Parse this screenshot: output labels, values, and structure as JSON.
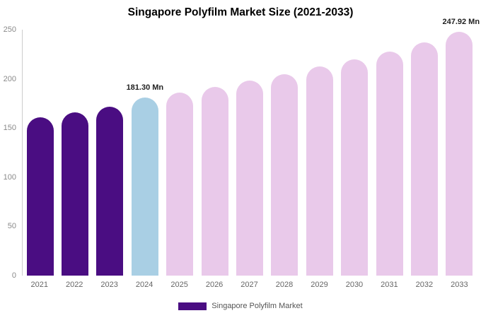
{
  "legend": {
    "label": "Singapore Polyfilm Market",
    "color": "#4a0d82"
  },
  "chart_data": {
    "type": "bar",
    "title": "Singapore Polyfilm Market Size (2021-2033)",
    "categories": [
      "2021",
      "2022",
      "2023",
      "2024",
      "2025",
      "2026",
      "2027",
      "2028",
      "2029",
      "2030",
      "2031",
      "2032",
      "2033"
    ],
    "values": [
      161,
      166,
      172,
      181.3,
      186,
      192,
      198,
      205,
      213,
      220,
      228,
      237,
      247.92
    ],
    "unit": "Mn",
    "xlabel": "",
    "ylabel": "",
    "ylim": [
      0,
      250
    ],
    "yticks": [
      0,
      50,
      100,
      150,
      200,
      250
    ],
    "grid": false,
    "legend_position": "bottom",
    "annotations": [
      "",
      "",
      "",
      "181.30 Mn",
      "",
      "",
      "",
      "",
      "",
      "",
      "",
      "",
      "247.92 Mn"
    ],
    "bar_colors": [
      "#4a0d82",
      "#4a0d82",
      "#4a0d82",
      "#a9cfe4",
      "#e9c9ea",
      "#e9c9ea",
      "#e9c9ea",
      "#e9c9ea",
      "#e9c9ea",
      "#e9c9ea",
      "#e9c9ea",
      "#e9c9ea",
      "#e9c9ea"
    ]
  }
}
